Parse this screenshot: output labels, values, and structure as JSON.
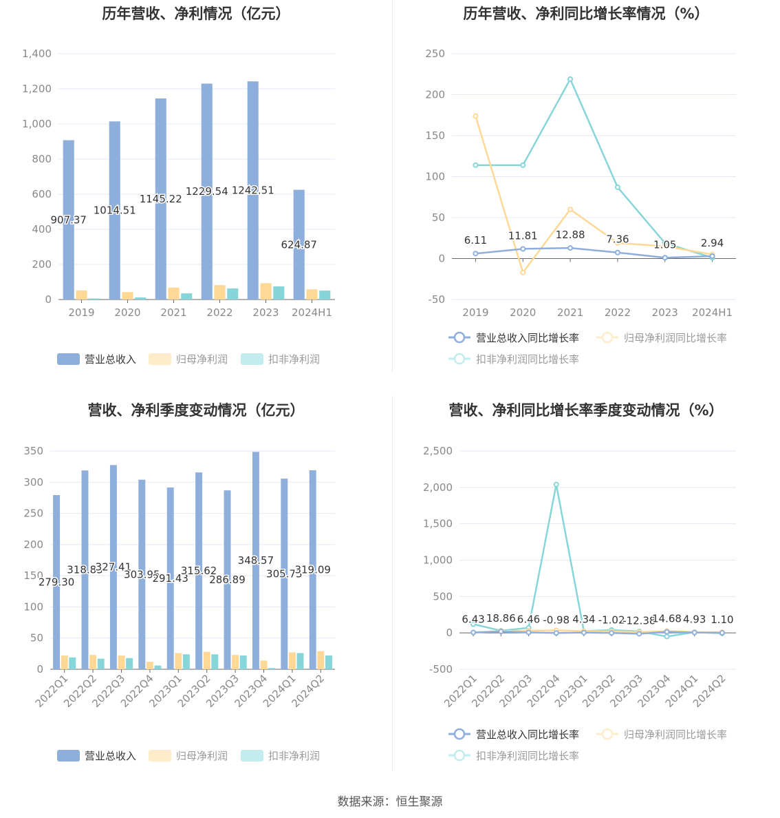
{
  "footer": "数据来源：恒生聚源",
  "colors": {
    "revenue": "#8eaedb",
    "net": "#ffd896",
    "deduct": "#86d5d8"
  },
  "chart_data": [
    {
      "type": "bar",
      "title": "历年营收、净利情况（亿元）",
      "categories": [
        "2019",
        "2020",
        "2021",
        "2022",
        "2023",
        "2024H1"
      ],
      "ylim": [
        0,
        1400
      ],
      "yticks": [
        0,
        200,
        400,
        600,
        800,
        1000,
        1200,
        1400
      ],
      "grid": true,
      "legend": "bottom",
      "series": [
        {
          "name": "营业总收入",
          "values": [
            907.37,
            1014.51,
            1145.22,
            1229.54,
            1242.51,
            624.87
          ],
          "labels": [
            "907.37",
            "1014.51",
            "1145.22",
            "1229.54",
            "1242.51",
            "624.87"
          ]
        },
        {
          "name": "归母净利润",
          "values": [
            52,
            42,
            68,
            82,
            93,
            58
          ]
        },
        {
          "name": "扣非净利润",
          "values": [
            6,
            12,
            35,
            63,
            75,
            51
          ]
        }
      ]
    },
    {
      "type": "line",
      "title": "历年营收、净利同比增长率情况（%）",
      "categories": [
        "2019",
        "2020",
        "2021",
        "2022",
        "2023",
        "2024H1"
      ],
      "ylim": [
        -50,
        250
      ],
      "yticks": [
        -50,
        0,
        50,
        100,
        150,
        200,
        250
      ],
      "grid": true,
      "legend": "bottom",
      "series": [
        {
          "name": "营业总收入同比增长率",
          "values": [
            6.11,
            11.81,
            12.88,
            7.36,
            1.05,
            2.94
          ],
          "labels": [
            "6.11",
            "11.81",
            "12.88",
            "7.36",
            "1.05",
            "2.94"
          ]
        },
        {
          "name": "归母净利润同比增长率",
          "values": [
            174,
            -17,
            60,
            19,
            15,
            5
          ]
        },
        {
          "name": "扣非净利润同比增长率",
          "values": [
            114,
            114,
            219,
            87,
            19,
            1
          ]
        }
      ]
    },
    {
      "type": "bar",
      "title": "营收、净利季度变动情况（亿元）",
      "categories": [
        "2022Q1",
        "2022Q2",
        "2022Q3",
        "2022Q4",
        "2023Q1",
        "2023Q2",
        "2023Q3",
        "2023Q4",
        "2024Q1",
        "2024Q2"
      ],
      "ylim": [
        0,
        350
      ],
      "yticks": [
        0,
        50,
        100,
        150,
        200,
        250,
        300,
        350
      ],
      "grid": true,
      "legend": "bottom",
      "series": [
        {
          "name": "营业总收入",
          "values": [
            279.3,
            318.83,
            327.41,
            303.95,
            291.43,
            315.62,
            286.89,
            348.57,
            305.73,
            319.09
          ],
          "labels": [
            "279.30",
            "318.83",
            "327.41",
            "303.95",
            "291.43",
            "315.62",
            "286.89",
            "348.57",
            "305.73",
            "319.09"
          ]
        },
        {
          "name": "归母净利润",
          "values": [
            22,
            23,
            22,
            12,
            26,
            28,
            23,
            14,
            27,
            29
          ]
        },
        {
          "name": "扣非净利润",
          "values": [
            19,
            17,
            18,
            6,
            24,
            24,
            22,
            2,
            26,
            22
          ]
        }
      ]
    },
    {
      "type": "line",
      "title": "营收、净利同比增长率季度变动情况（%）",
      "categories": [
        "2022Q1",
        "2022Q2",
        "2022Q3",
        "2022Q4",
        "2023Q1",
        "2023Q2",
        "2023Q3",
        "2023Q4",
        "2024Q1",
        "2024Q2"
      ],
      "ylim": [
        -500,
        2500
      ],
      "yticks": [
        -500,
        0,
        500,
        1000,
        1500,
        2000,
        2500
      ],
      "grid": true,
      "legend": "bottom",
      "series": [
        {
          "name": "营业总收入同比增长率",
          "values": [
            6.43,
            18.86,
            6.46,
            -0.98,
            4.34,
            -1.02,
            -12.38,
            14.68,
            4.93,
            1.1
          ],
          "labels": [
            "6.43",
            "18.86",
            "6.46",
            "-0.98",
            "4.34",
            "-1.02",
            "-12.38",
            "14.68",
            "4.93",
            "1.10"
          ]
        },
        {
          "name": "归母净利润同比增长率",
          "values": [
            5,
            25,
            30,
            35,
            25,
            20,
            10,
            25,
            10,
            10
          ]
        },
        {
          "name": "扣非净利润同比增长率",
          "values": [
            120,
            30,
            70,
            2040,
            25,
            40,
            20,
            -50,
            10,
            -5
          ]
        }
      ]
    }
  ]
}
